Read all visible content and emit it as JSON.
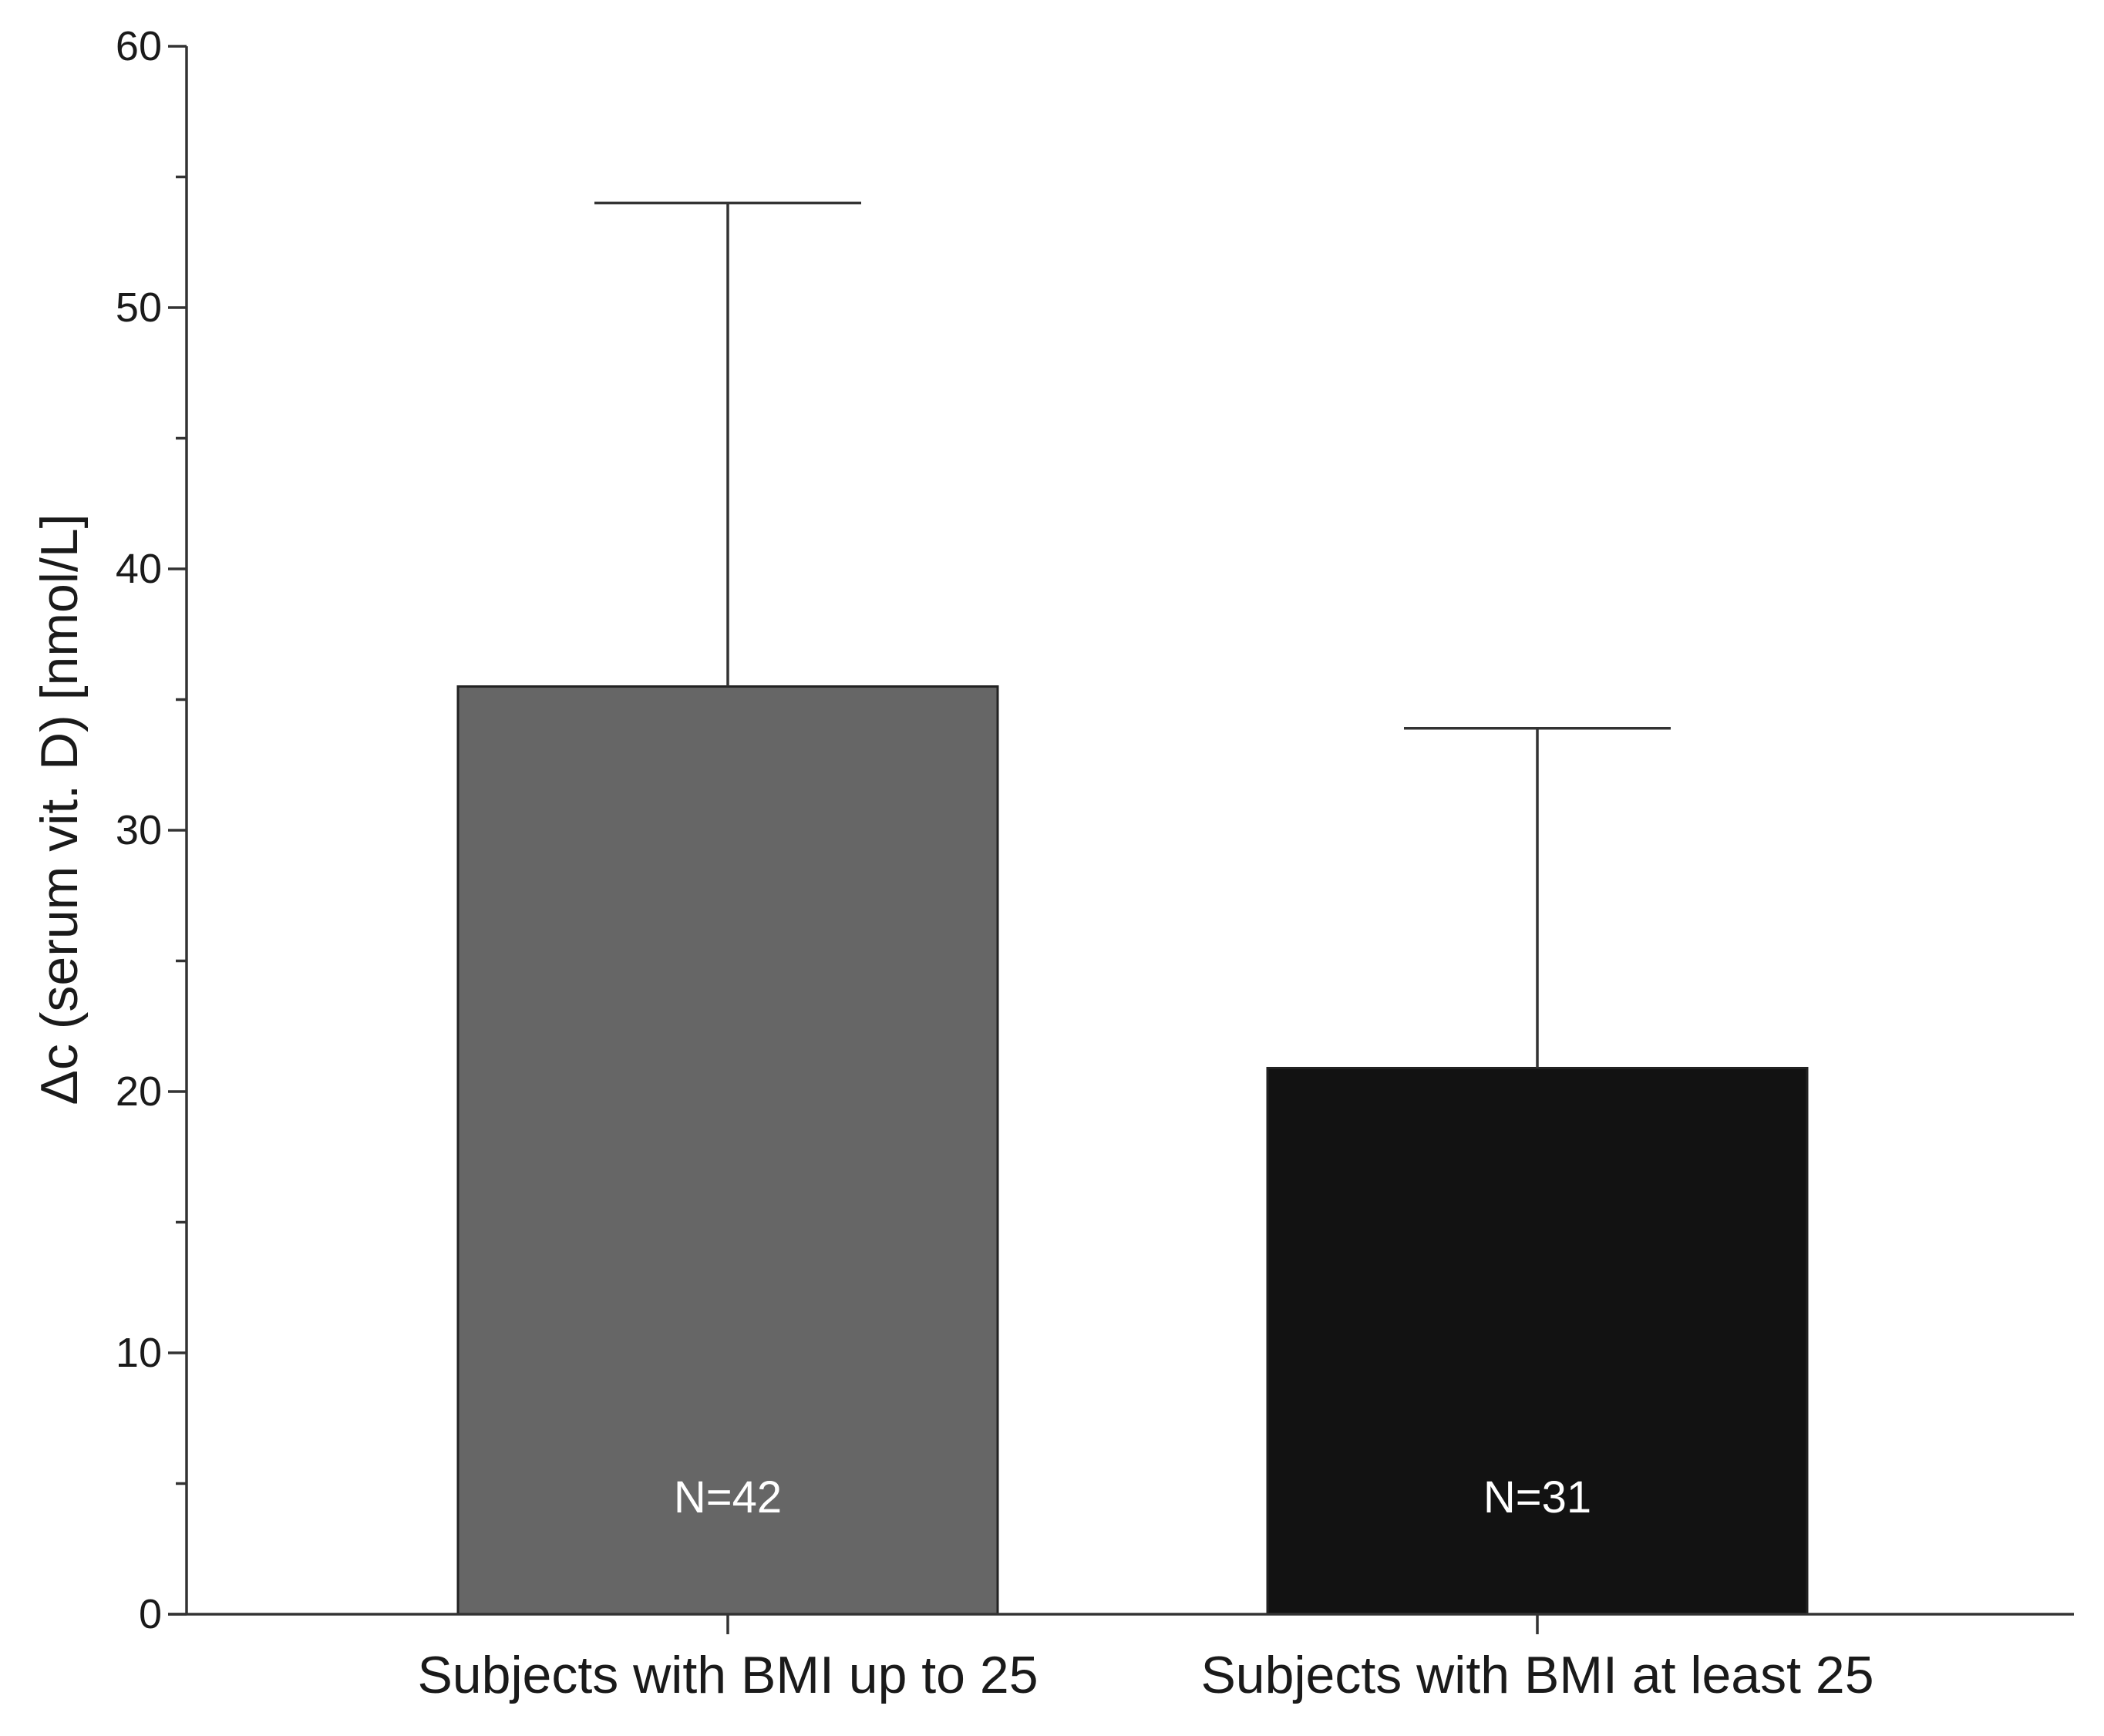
{
  "chart_data": {
    "type": "bar",
    "categories": [
      "Subjects with BMI up to 25",
      "Subjects with BMI at least 25"
    ],
    "values": [
      35.5,
      20.9
    ],
    "error_upper": [
      54.0,
      33.9
    ],
    "bar_labels": [
      "N=42",
      "N=31"
    ],
    "bar_colors": [
      "#666666",
      "#121212"
    ],
    "title": "",
    "xlabel": "",
    "ylabel": "Δc (serum vit. D) [nmol/L]",
    "ylim": [
      0,
      60
    ],
    "y_major_ticks": [
      0,
      10,
      20,
      30,
      40,
      50,
      60
    ],
    "y_minor_ticks": [
      5,
      15,
      25,
      35,
      45,
      55
    ],
    "grid": false,
    "legend": "none"
  }
}
